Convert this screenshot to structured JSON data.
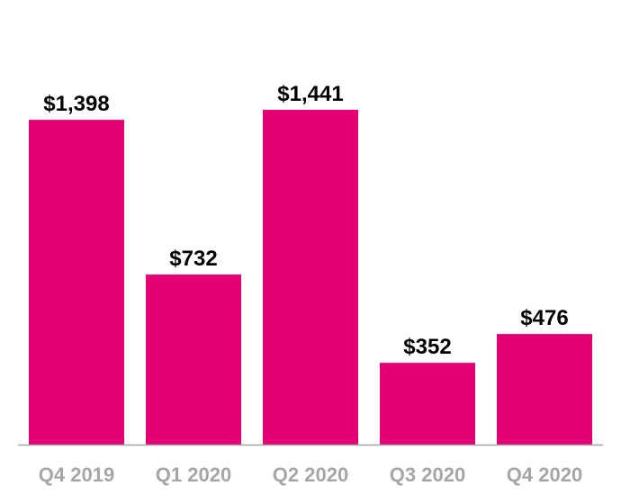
{
  "chart_data": {
    "type": "bar",
    "title": "",
    "xlabel": "",
    "ylabel": "",
    "categories": [
      "Q4 2019",
      "Q1 2020",
      "Q2 2020",
      "Q3 2020",
      "Q4 2020"
    ],
    "values": [
      1398,
      732,
      1441,
      352,
      476
    ],
    "value_labels": [
      "$1,398",
      "$732",
      "$1,441",
      "$352",
      "$476"
    ],
    "ylim": [
      0,
      1441
    ],
    "grid": false,
    "legend": "none",
    "colors": {
      "bar": "#E20074",
      "axis": "#A6A6A6",
      "tick_text": "#A6A6A6",
      "value_text": "#000000"
    }
  }
}
